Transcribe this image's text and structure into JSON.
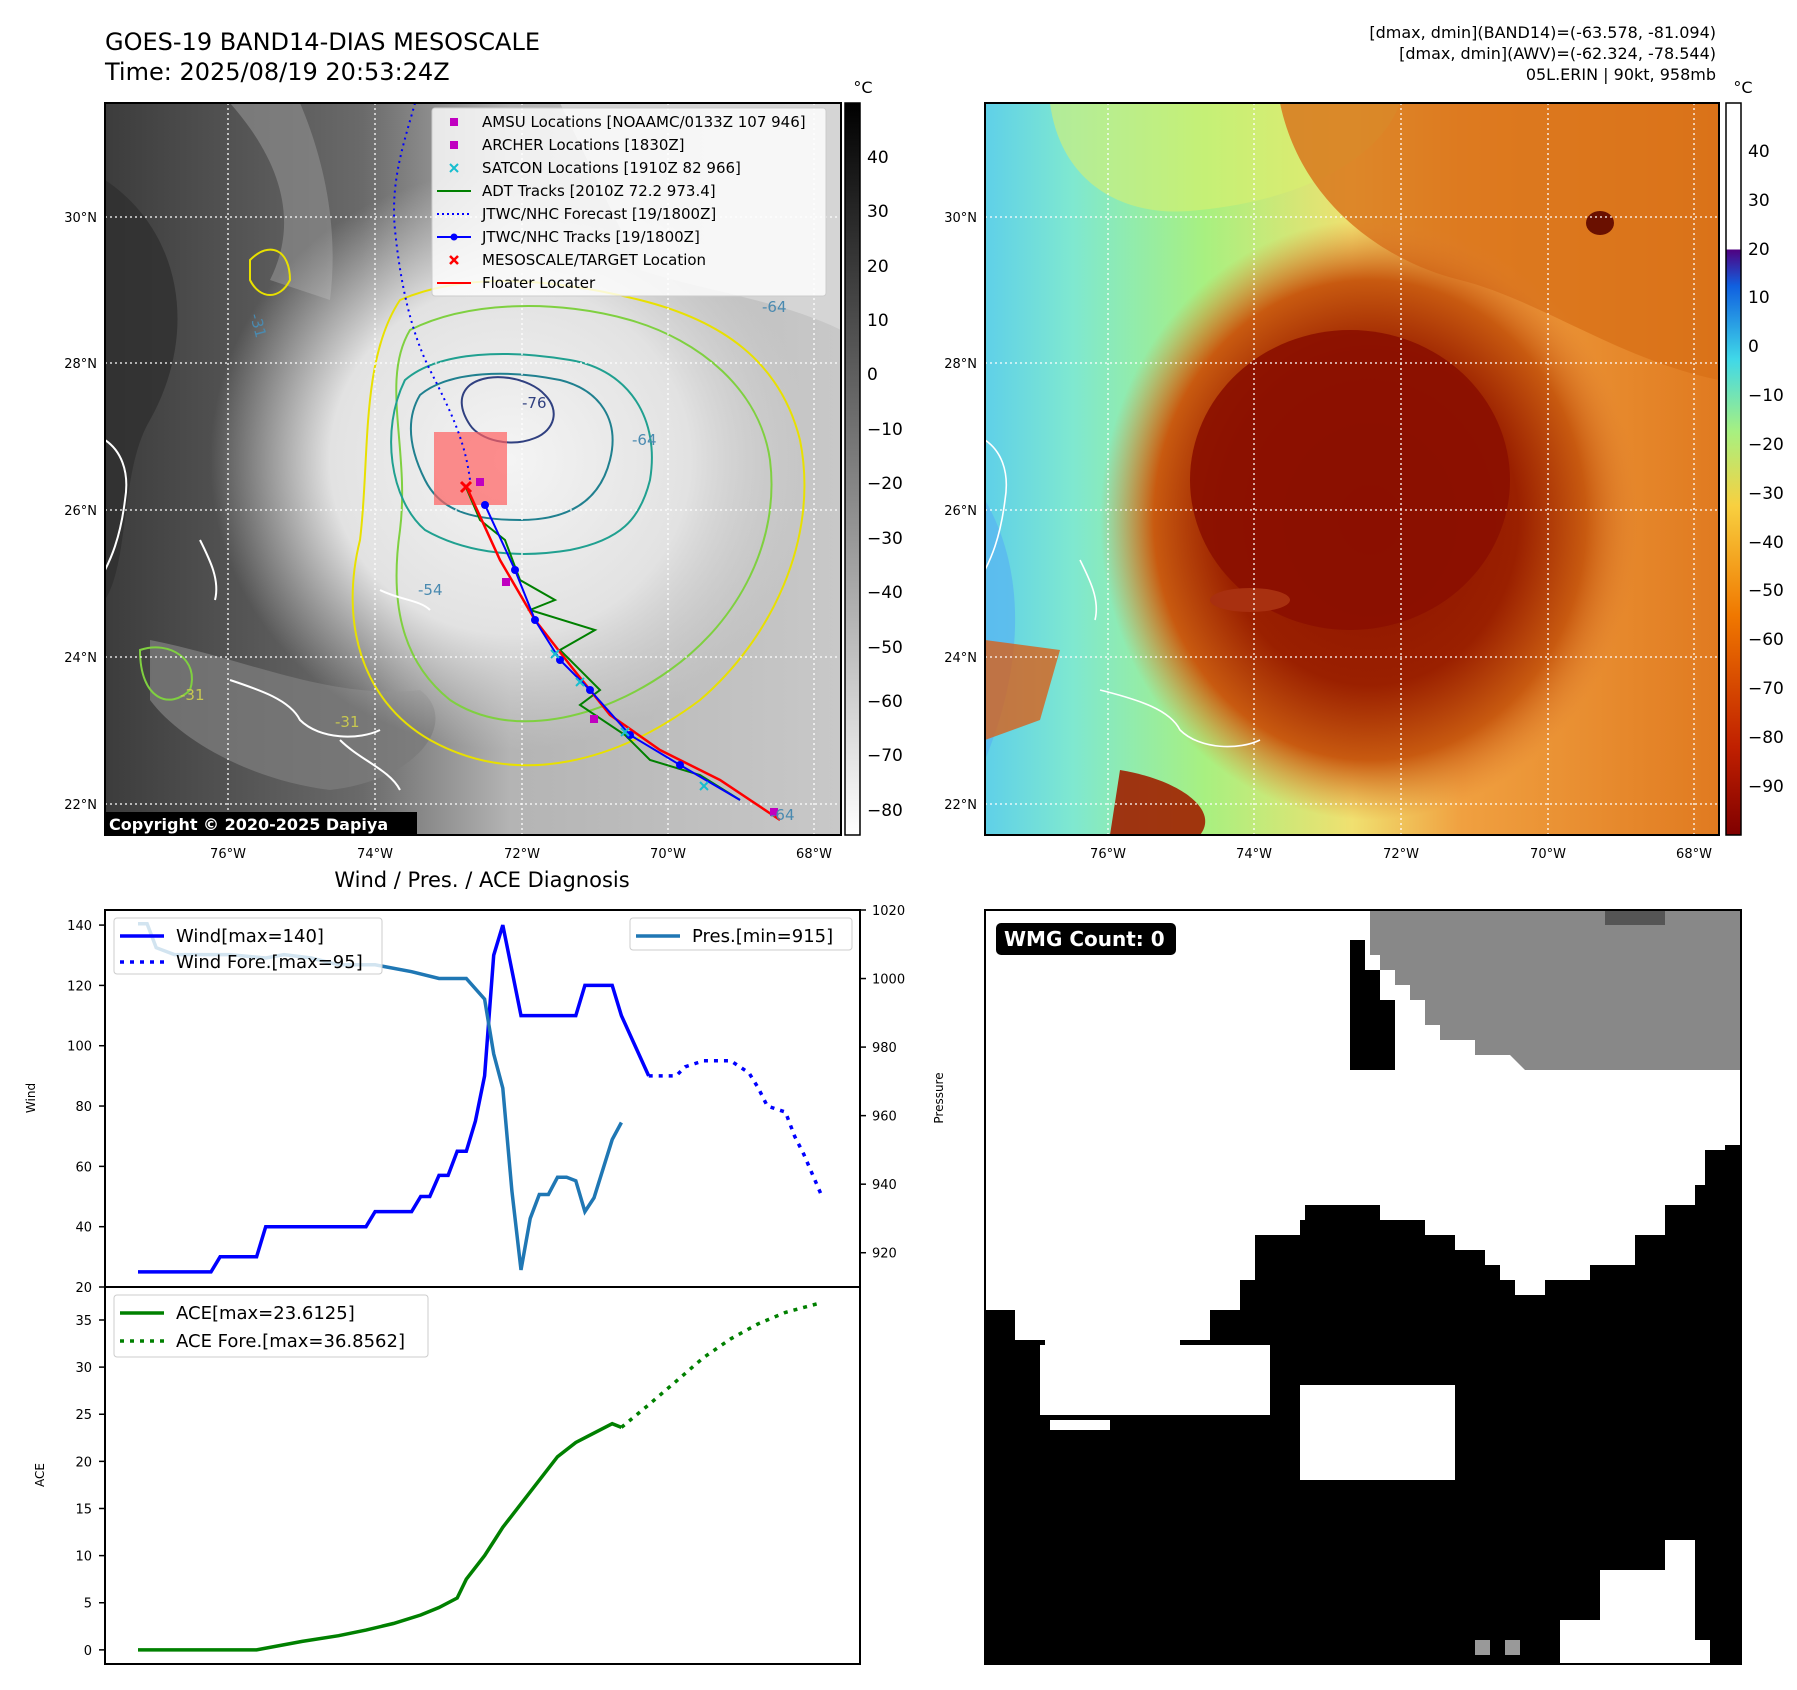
{
  "header": {
    "title_line1": "GOES-19 BAND14-DIAS MESOSCALE",
    "title_line2": "Time: 2025/08/19 20:53:24Z",
    "right_line1": "[dmax, dmin](BAND14)=(-63.578, -81.094)",
    "right_line2": "[dmax, dmin](AWV)=(-62.324, -78.544)",
    "right_line3": "05L.ERIN | 90kt, 958mb"
  },
  "map_axes": {
    "lon_labels": [
      "76°W",
      "74°W",
      "72°W",
      "70°W",
      "68°W"
    ],
    "lat_labels": [
      "30°N",
      "28°N",
      "26°N",
      "24°N",
      "22°N"
    ]
  },
  "ir_panel": {
    "unit": "°C",
    "colorbar_ticks": [
      "40",
      "30",
      "20",
      "10",
      "0",
      "−10",
      "−20",
      "−30",
      "−40",
      "−50",
      "−60",
      "−70",
      "−80"
    ],
    "copyright": "Copyright © 2020-2025 Dapiya",
    "contour_labels": [
      "-31",
      "-64",
      "-76",
      "-64",
      "-54",
      "-31",
      "-31",
      "-64"
    ],
    "legend": [
      {
        "label": "AMSU Locations [NOAAMC/0133Z 107 946]",
        "marker": "square",
        "color": "#c000c0"
      },
      {
        "label": "ARCHER Locations [1830Z]",
        "marker": "square",
        "color": "#c000c0"
      },
      {
        "label": "SATCON Locations [1910Z 82 966]",
        "marker": "x",
        "color": "#17becf"
      },
      {
        "label": "ADT Tracks [2010Z 72.2 973.4]",
        "marker": "line",
        "color": "#008000"
      },
      {
        "label": "JTWC/NHC Forecast [19/1800Z]",
        "marker": "dotted",
        "color": "#0000ff"
      },
      {
        "label": "JTWC/NHC Tracks [19/1800Z]",
        "marker": "line-dot",
        "color": "#0000ff"
      },
      {
        "label": "MESOSCALE/TARGET Location",
        "marker": "x",
        "color": "#ff0000"
      },
      {
        "label": "Floater Locater",
        "marker": "line",
        "color": "#ff0000"
      }
    ]
  },
  "wv_panel": {
    "unit": "°C",
    "colorbar_ticks": [
      "40",
      "30",
      "20",
      "10",
      "0",
      "−10",
      "−20",
      "−30",
      "−40",
      "−50",
      "−60",
      "−70",
      "−80",
      "−90"
    ]
  },
  "wmg_panel": {
    "badge": "WMG Count: 0"
  },
  "chart_data": [
    {
      "type": "line",
      "title": "Wind / Pres. / ACE Diagnosis",
      "ylabel": "Wind",
      "y2label": "Pressure",
      "ylim": [
        20,
        145
      ],
      "y2lim": [
        910,
        1020
      ],
      "yticks": [
        "20",
        "40",
        "60",
        "80",
        "100",
        "120",
        "140"
      ],
      "y2ticks": [
        "920",
        "940",
        "960",
        "980",
        "1000",
        "1020"
      ],
      "series": [
        {
          "name": "Wind[max=140]",
          "color": "#0000ff",
          "style": "solid",
          "x": [
            0,
            8,
            9,
            13,
            14,
            17,
            18,
            25,
            26,
            30,
            31,
            32,
            33,
            34,
            35,
            36,
            37,
            38,
            39,
            40,
            41,
            42,
            43,
            48,
            49,
            52,
            53,
            56
          ],
          "values": [
            25,
            25,
            30,
            30,
            40,
            40,
            40,
            40,
            45,
            45,
            50,
            50,
            57,
            57,
            65,
            65,
            75,
            90,
            130,
            140,
            125,
            110,
            110,
            110,
            120,
            120,
            110,
            90
          ]
        },
        {
          "name": "Wind Fore.[max=95]",
          "color": "#0000ff",
          "style": "dotted",
          "x": [
            56,
            59,
            60,
            62,
            63,
            64,
            65,
            67,
            68,
            69,
            70,
            71,
            72,
            73,
            75
          ],
          "values": [
            90,
            90,
            93,
            95,
            95,
            95,
            95,
            91,
            86,
            80,
            79,
            78,
            70,
            64,
            50
          ]
        },
        {
          "name": "Pres.[min=915]",
          "color": "#1f77b4",
          "style": "solid",
          "x": [
            0,
            1,
            2,
            4,
            6,
            10,
            14,
            16,
            19,
            22,
            26,
            30,
            33,
            35,
            36,
            38,
            39,
            40,
            41,
            42,
            43,
            44,
            45,
            46,
            47,
            48,
            49,
            50,
            52,
            53
          ],
          "values": [
            1016,
            1016,
            1009,
            1007,
            1007,
            1007,
            1006,
            1007,
            1006,
            1004,
            1004,
            1002,
            1000,
            1000,
            1000,
            994,
            978,
            968,
            938,
            915,
            930,
            937,
            937,
            942,
            942,
            941,
            932,
            936,
            953,
            958
          ]
        }
      ]
    },
    {
      "type": "line",
      "ylabel": "ACE",
      "ylim": [
        -1.5,
        38.5
      ],
      "yticks": [
        "0",
        "5",
        "10",
        "15",
        "20",
        "25",
        "30",
        "35"
      ],
      "series": [
        {
          "name": "ACE[max=23.6125]",
          "color": "#008000",
          "style": "solid",
          "x": [
            0,
            13,
            18,
            22,
            25,
            28,
            31,
            33,
            35,
            36,
            38,
            39,
            40,
            42,
            44,
            46,
            48,
            50,
            52,
            53
          ],
          "values": [
            0,
            0,
            0.9,
            1.5,
            2.1,
            2.8,
            3.7,
            4.5,
            5.5,
            7.5,
            10,
            11.5,
            13,
            15.5,
            18,
            20.5,
            22,
            23,
            24,
            23.6
          ]
        },
        {
          "name": "ACE Fore.[max=36.8562]",
          "color": "#008000",
          "style": "dotted",
          "x": [
            53,
            56,
            59,
            62,
            65,
            68,
            71,
            75
          ],
          "values": [
            23.6,
            26,
            28.5,
            31,
            33,
            34.6,
            35.8,
            36.86
          ]
        }
      ]
    }
  ]
}
